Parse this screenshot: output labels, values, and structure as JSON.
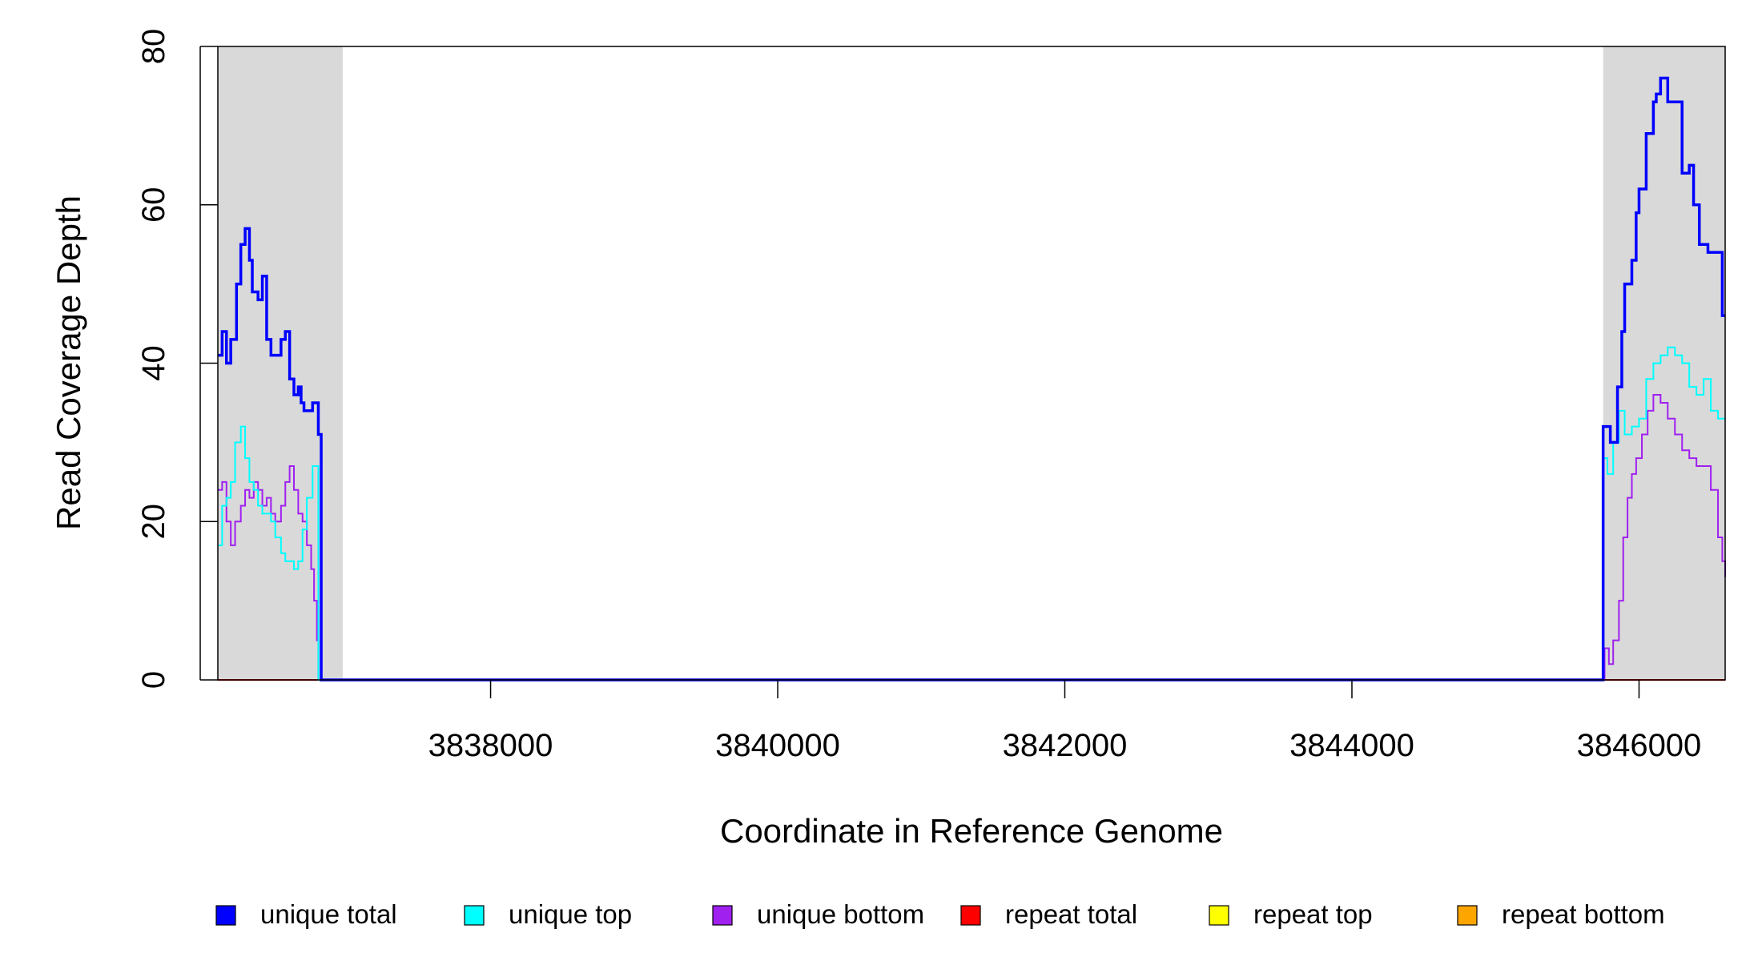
{
  "chart_data": {
    "type": "line",
    "title": "",
    "xlabel": "Coordinate in Reference Genome",
    "ylabel": "Read Coverage Depth",
    "xlim": [
      3836100,
      3846600
    ],
    "ylim": [
      0,
      80
    ],
    "x_ticks": [
      3838000,
      3840000,
      3842000,
      3844000,
      3846000
    ],
    "x_tick_labels": [
      "3838000",
      "3840000",
      "3842000",
      "3844000",
      "3846000"
    ],
    "y_ticks": [
      0,
      20,
      40,
      60,
      80
    ],
    "y_tick_labels": [
      "0",
      "20",
      "40",
      "60",
      "80"
    ],
    "shaded_regions": [
      [
        3836100,
        3836970
      ],
      [
        3845750,
        3846600
      ]
    ],
    "shade_color": "#d9d9d9",
    "legend_position": "bottom",
    "grid": false,
    "series": [
      {
        "name": "unique total",
        "color": "#0000ff",
        "x": [
          3836100,
          3836130,
          3836160,
          3836190,
          3836230,
          3836260,
          3836290,
          3836320,
          3836340,
          3836380,
          3836410,
          3836440,
          3836470,
          3836510,
          3836540,
          3836570,
          3836600,
          3836630,
          3836660,
          3836680,
          3836700,
          3836730,
          3836760,
          3836800,
          3836820,
          3836850,
          3836870,
          3836900,
          3836920,
          3836950,
          3836970,
          3836980,
          3836990,
          3845740,
          3845750,
          3845800,
          3845850,
          3845880,
          3845900,
          3845950,
          3845980,
          3846000,
          3846050,
          3846100,
          3846120,
          3846150,
          3846200,
          3846250,
          3846300,
          3846350,
          3846380,
          3846420,
          3846480,
          3846550,
          3846580,
          3846600
        ],
        "values": [
          41,
          44,
          40,
          43,
          50,
          55,
          57,
          53,
          49,
          48,
          51,
          43,
          41,
          41,
          43,
          44,
          38,
          36,
          37,
          35,
          34,
          34,
          35,
          31,
          0,
          0,
          0,
          0,
          0,
          0,
          0,
          0,
          0,
          0,
          32,
          30,
          37,
          44,
          50,
          53,
          59,
          62,
          69,
          73,
          74,
          76,
          73,
          73,
          64,
          65,
          60,
          55,
          54,
          54,
          46,
          46
        ]
      },
      {
        "name": "unique top",
        "color": "#00ffff",
        "x": [
          3836100,
          3836130,
          3836160,
          3836190,
          3836220,
          3836260,
          3836290,
          3836320,
          3836350,
          3836380,
          3836410,
          3836440,
          3836470,
          3836500,
          3836540,
          3836570,
          3836600,
          3836630,
          3836660,
          3836690,
          3836720,
          3836760,
          3836800,
          3836820,
          3836850,
          3836880,
          3836920,
          3836950,
          3836970,
          3836990,
          3845740,
          3845750,
          3845780,
          3845820,
          3845860,
          3845900,
          3845950,
          3846000,
          3846050,
          3846100,
          3846150,
          3846200,
          3846250,
          3846300,
          3846350,
          3846400,
          3846450,
          3846500,
          3846550,
          3846600
        ],
        "values": [
          17,
          22,
          23,
          25,
          30,
          32,
          28,
          25,
          24,
          22,
          21,
          21,
          20,
          18,
          16,
          15,
          15,
          14,
          15,
          19,
          23,
          27,
          0,
          0,
          0,
          0,
          0,
          0,
          0,
          0,
          0,
          28,
          26,
          30,
          34,
          31,
          32,
          33,
          38,
          40,
          41,
          42,
          41,
          40,
          37,
          36,
          38,
          34,
          33,
          33
        ]
      },
      {
        "name": "unique bottom",
        "color": "#a020f0",
        "x": [
          3836100,
          3836130,
          3836160,
          3836190,
          3836220,
          3836260,
          3836290,
          3836320,
          3836350,
          3836380,
          3836410,
          3836440,
          3836470,
          3836500,
          3836540,
          3836570,
          3836600,
          3836630,
          3836660,
          3836690,
          3836720,
          3836750,
          3836770,
          3836790,
          3836800,
          3836850,
          3836900,
          3836950,
          3836980,
          3845740,
          3845760,
          3845790,
          3845820,
          3845860,
          3845890,
          3845920,
          3845950,
          3845980,
          3846020,
          3846060,
          3846100,
          3846150,
          3846200,
          3846250,
          3846300,
          3846350,
          3846400,
          3846450,
          3846500,
          3846550,
          3846580,
          3846600
        ],
        "values": [
          24,
          25,
          20,
          17,
          20,
          22,
          24,
          23,
          25,
          24,
          22,
          23,
          21,
          20,
          22,
          25,
          27,
          24,
          21,
          20,
          17,
          14,
          10,
          5,
          0,
          0,
          0,
          0,
          0,
          0,
          4,
          2,
          5,
          10,
          18,
          23,
          26,
          28,
          31,
          34,
          36,
          35,
          33,
          31,
          29,
          28,
          27,
          27,
          24,
          18,
          15,
          13
        ]
      },
      {
        "name": "repeat total",
        "color": "#ff0000",
        "x": [
          3836100,
          3846600
        ],
        "values": [
          0,
          0
        ]
      },
      {
        "name": "repeat top",
        "color": "#ffff00",
        "x": [
          3836100,
          3846600
        ],
        "values": [
          0,
          0
        ]
      },
      {
        "name": "repeat bottom",
        "color": "#ffa500",
        "x": [
          3836100,
          3846600
        ],
        "values": [
          0,
          0
        ]
      }
    ]
  }
}
